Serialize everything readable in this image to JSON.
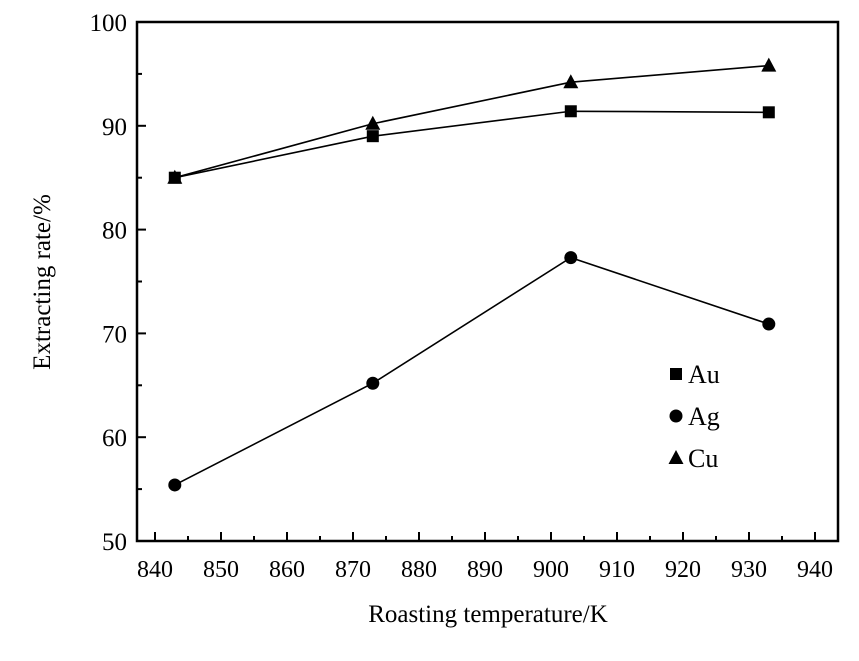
{
  "chart_data": {
    "type": "line",
    "title": "",
    "xlabel": "Roasting temperature/K",
    "ylabel": "Extracting rate/%",
    "xlim": [
      835,
      940
    ],
    "ylim": [
      50,
      100
    ],
    "xticks": [
      840,
      850,
      860,
      870,
      880,
      890,
      900,
      910,
      920,
      930,
      940
    ],
    "yticks": [
      50,
      60,
      70,
      80,
      90,
      100
    ],
    "grid": false,
    "legend_position": "right-center",
    "x": [
      843,
      873,
      903,
      933
    ],
    "series": [
      {
        "name": "Au",
        "marker": "square",
        "values": [
          85.0,
          89.0,
          91.4,
          91.3
        ]
      },
      {
        "name": "Ag",
        "marker": "circle",
        "values": [
          55.4,
          65.2,
          77.3,
          70.9
        ]
      },
      {
        "name": "Cu",
        "marker": "triangle",
        "values": [
          85.0,
          90.2,
          94.2,
          95.8
        ]
      }
    ],
    "colors": {
      "line": "#000000",
      "marker": "#000000"
    }
  }
}
